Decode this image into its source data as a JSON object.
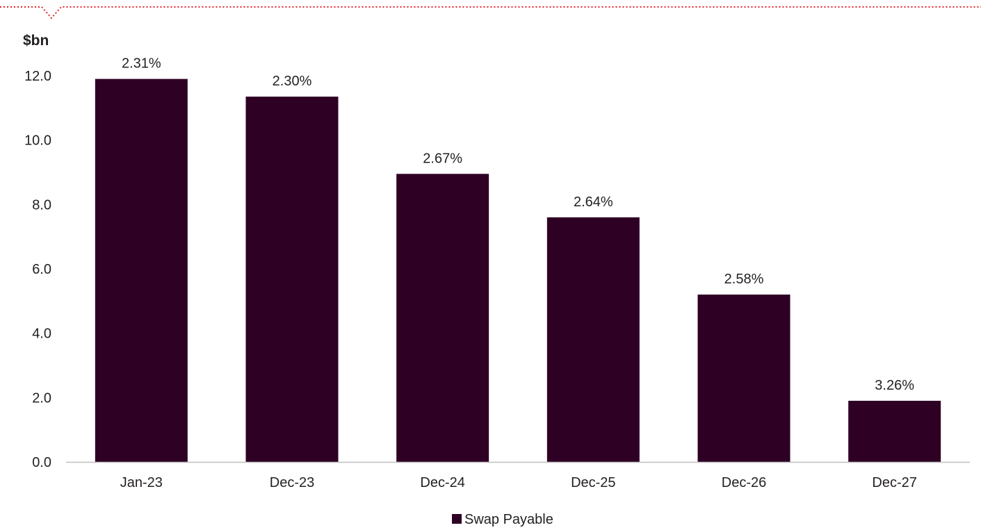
{
  "chart_data": {
    "type": "bar",
    "unit_label": "$bn",
    "categories": [
      "Jan-23",
      "Dec-23",
      "Dec-24",
      "Dec-25",
      "Dec-26",
      "Dec-27"
    ],
    "series": [
      {
        "name": "Swap Payable",
        "values": [
          11.9,
          11.35,
          8.95,
          7.6,
          5.2,
          1.9
        ],
        "data_labels": [
          "2.31%",
          "2.30%",
          "2.67%",
          "2.64%",
          "2.58%",
          "3.26%"
        ]
      }
    ],
    "y_ticks": [
      "0.0",
      "2.0",
      "4.0",
      "6.0",
      "8.0",
      "10.0",
      "12.0"
    ],
    "ylim": [
      0,
      12
    ],
    "grid": false,
    "legend_position": "bottom-center"
  },
  "colors": {
    "bar": "#2e0024",
    "text": "#231f20",
    "axis": "#bfbfbf",
    "accent_border": "#e3242b"
  }
}
